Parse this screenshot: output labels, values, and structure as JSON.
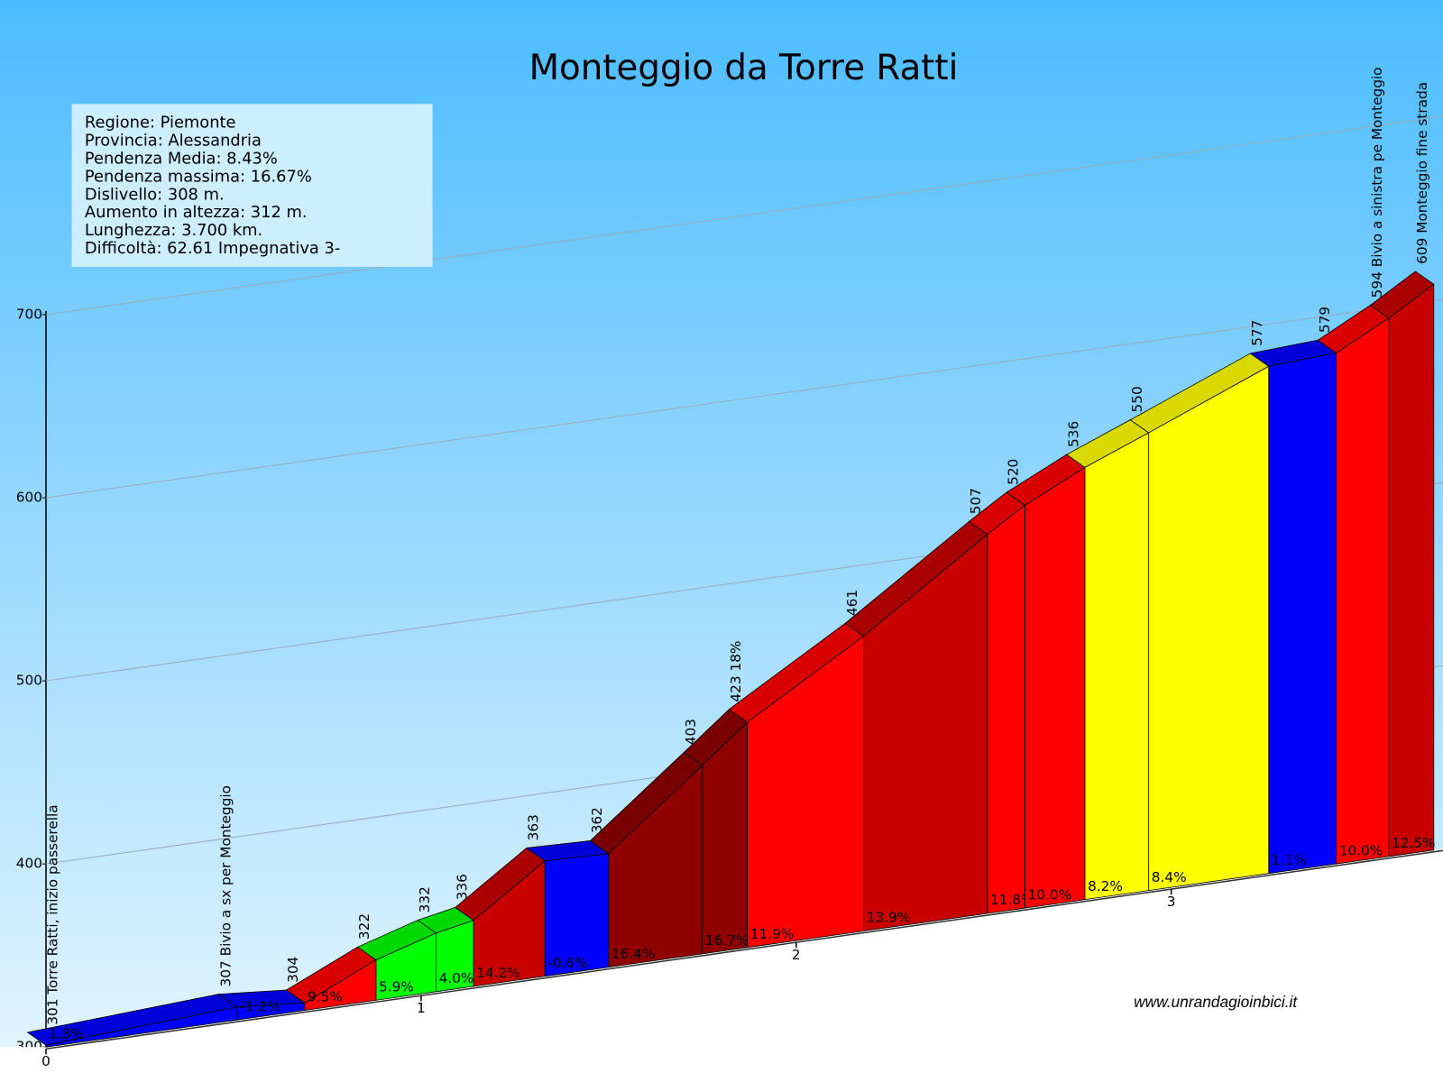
{
  "chart_data": {
    "type": "climb-profile",
    "title": "Monteggio da Torre Ratti",
    "info": [
      "Regione: Piemonte",
      "Provincia: Alessandria",
      "Pendenza Media: 8.43%",
      "Pendenza massima: 16.67%",
      "Dislivello:   308 m.",
      "Aumento in altezza:   312 m.",
      "Lunghezza:  3.700 km.",
      "Difficoltà: 62.61 Impegnativa 3-"
    ],
    "source": "www.unrandagioinbici.it",
    "ylim": [
      300,
      700
    ],
    "yticks": [
      300,
      400,
      500,
      600,
      700
    ],
    "xlim": [
      0,
      3.7
    ],
    "xticks": [
      0,
      1,
      2,
      3
    ],
    "grid": true,
    "points": {
      "x": [
        0,
        0.51,
        0.69,
        0.88,
        1.04,
        1.14,
        1.33,
        1.5,
        1.75,
        1.87,
        2.18,
        2.51,
        2.61,
        2.77,
        2.94,
        3.26,
        3.44,
        3.58,
        3.7
      ],
      "elevations": [
        301,
        307,
        304,
        322,
        332,
        336,
        363,
        362,
        403,
        423,
        461,
        507,
        520,
        536,
        550,
        577,
        579,
        594,
        609
      ],
      "value_labels": [
        "301 Torre Ratti,  inizio passerella",
        "307 Bivio a sx per Monteggio",
        "304",
        "322",
        "332",
        "336",
        "363",
        "362",
        "403",
        "423 18%",
        "461",
        "507",
        "520",
        "536",
        "550",
        "577",
        "579",
        "594 Bivio a sinistra pe Monteggio",
        "609 Monteggio fine strada"
      ]
    },
    "segments": {
      "gradients": [
        1.3,
        -1.2,
        9.5,
        5.9,
        4.0,
        14.2,
        -0.6,
        16.4,
        16.7,
        11.9,
        13.9,
        11.8,
        10.0,
        8.2,
        8.4,
        1.1,
        10.0,
        12.5
      ],
      "value_labels": [
        "1.3%",
        "-1.2%",
        "9.5%",
        "5.9%",
        "4.0%",
        "14.2%",
        "-0.6%",
        "16.4%",
        "16.7%",
        "11.9%",
        "13.9%",
        "11.8%",
        "10.0%",
        "8.2%",
        "8.4%",
        "1.1%",
        "10.0%",
        "12.5%"
      ],
      "colors": [
        "#0000ff",
        "#0000ff",
        "#ff0000",
        "#00ff00",
        "#00ff00",
        "#c80000",
        "#0000ff",
        "#900000",
        "#900000",
        "#ff0000",
        "#c80000",
        "#ff0000",
        "#ff0000",
        "#ffff00",
        "#ffff00",
        "#0000ff",
        "#ff0000",
        "#c80000"
      ]
    }
  }
}
